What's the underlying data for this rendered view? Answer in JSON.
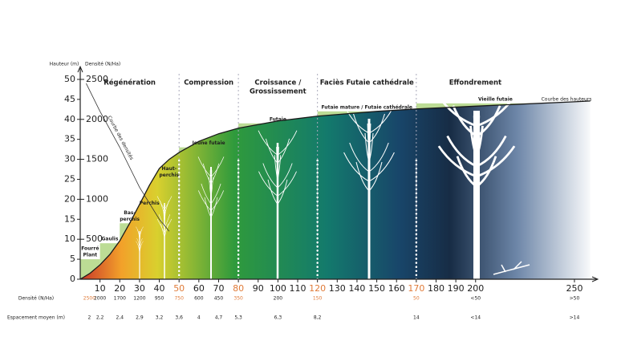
{
  "chart_data": {
    "type": "line",
    "y_label": "Hauteur (m)",
    "y2_label": "Densité (N/Ha)",
    "xlim": [
      0,
      260
    ],
    "ylim": [
      0,
      52
    ],
    "y2lim": [
      0,
      2600
    ],
    "xticks": [
      10,
      20,
      30,
      40,
      50,
      60,
      70,
      80,
      90,
      100,
      110,
      120,
      130,
      140,
      150,
      160,
      170,
      180,
      190,
      200,
      250
    ],
    "yticks": [
      0,
      5,
      10,
      15,
      20,
      25,
      30,
      35,
      40,
      45,
      50
    ],
    "y2ticks": [
      500,
      1000,
      1500,
      2000,
      2500
    ],
    "highlight_color": "#e07b39",
    "series": [
      {
        "name": "Courbe des hauteurs",
        "color": "#1a1a1a",
        "x": [
          0,
          5,
          10,
          15,
          20,
          25,
          30,
          35,
          40,
          45,
          50,
          60,
          70,
          80,
          100,
          120,
          150,
          170,
          200,
          250,
          258
        ],
        "values": [
          0,
          1.5,
          3.6,
          6.2,
          9.6,
          14,
          18.7,
          23.5,
          27.7,
          30,
          31.7,
          34.5,
          36.4,
          37.8,
          39.6,
          40.8,
          42,
          42.6,
          43.3,
          44.4,
          44.6
        ]
      },
      {
        "name": "Courbe des densités",
        "color": "#333333",
        "axis": "y2",
        "x": [
          3,
          10,
          20,
          30,
          40,
          45
        ],
        "values": [
          2450,
          2100,
          1650,
          1150,
          750,
          600
        ]
      }
    ],
    "phases": [
      {
        "name": [
          "Régénération"
        ],
        "from": 0,
        "to": 50
      },
      {
        "name": [
          "Compression"
        ],
        "from": 50,
        "to": 80
      },
      {
        "name": [
          "Croissance /",
          "Grossissement"
        ],
        "from": 80,
        "to": 120
      },
      {
        "name": [
          "Faciès Futaie cathédrale"
        ],
        "from": 120,
        "to": 170
      },
      {
        "name": [
          "Effondrement"
        ],
        "from": 170,
        "to": 250
      }
    ],
    "stages": [
      {
        "name": [
          "Fourré",
          "Plant"
        ],
        "from": 0,
        "to": 10,
        "height": 5
      },
      {
        "name": [
          "Gaulis"
        ],
        "from": 10,
        "to": 20,
        "height": 9
      },
      {
        "name": [
          "Bas-",
          "perchis"
        ],
        "from": 20,
        "to": 30,
        "height": 14
      },
      {
        "name": [
          "Perchis"
        ],
        "from": 30,
        "to": 40,
        "height": 18
      },
      {
        "name": [
          "Haut-",
          "perchis"
        ],
        "from": 40,
        "to": 50,
        "height": 25
      },
      {
        "name": [
          "Jeune futaie"
        ],
        "from": 50,
        "to": 80,
        "height": 33
      },
      {
        "name": [
          "Futaie"
        ],
        "from": 80,
        "to": 120,
        "height": 39
      },
      {
        "name": [
          "Futaie mature  / Futaie cathédrale"
        ],
        "from": 120,
        "to": 170,
        "height": 42
      },
      {
        "name": [
          "Vieille futaie"
        ],
        "from": 170,
        "to": 250,
        "height": 44
      }
    ],
    "rows": [
      {
        "label": "Densité (N/Ha)",
        "x": [
          3,
          10,
          20,
          30,
          40,
          50,
          60,
          70,
          80,
          100,
          120,
          170,
          200,
          250
        ],
        "values": [
          "2500",
          "2000",
          "1700",
          "1200",
          "950",
          "750",
          "600",
          "450",
          "350",
          "200",
          "150",
          "50",
          "<50",
          ">50"
        ]
      },
      {
        "label": "Espacement moyen (m)",
        "x": [
          3,
          10,
          20,
          30,
          40,
          50,
          60,
          70,
          80,
          100,
          120,
          170,
          200,
          250
        ],
        "values": [
          "2",
          "2,2",
          "2,4",
          "2,9",
          "3,2",
          "3,6",
          "4",
          "4,7",
          "5,3",
          "6,3",
          "8,2",
          "14",
          "<14",
          ">14"
        ]
      }
    ]
  }
}
